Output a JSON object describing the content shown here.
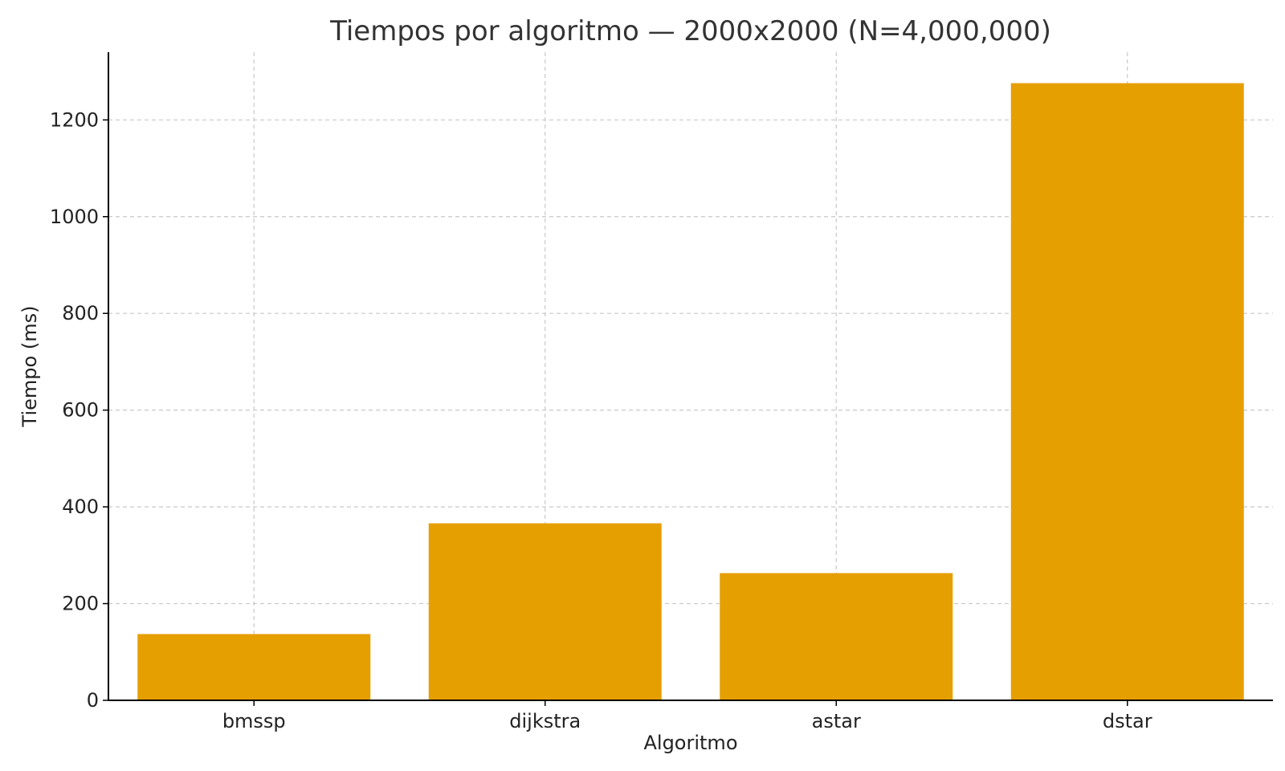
{
  "chart_data": {
    "type": "bar",
    "title": "Tiempos por algoritmo — 2000x2000 (N=4,000,000)",
    "xlabel": "Algoritmo",
    "ylabel": "Tiempo (ms)",
    "categories": [
      "bmssp",
      "dijkstra",
      "astar",
      "dstar"
    ],
    "values": [
      137,
      366,
      263,
      1276
    ],
    "ylim": [
      0,
      1340
    ],
    "yticks": [
      0,
      200,
      400,
      600,
      800,
      1000,
      1200
    ],
    "grid": true,
    "bar_color": "#E69F00",
    "grid_color": "#c8c8c8"
  }
}
